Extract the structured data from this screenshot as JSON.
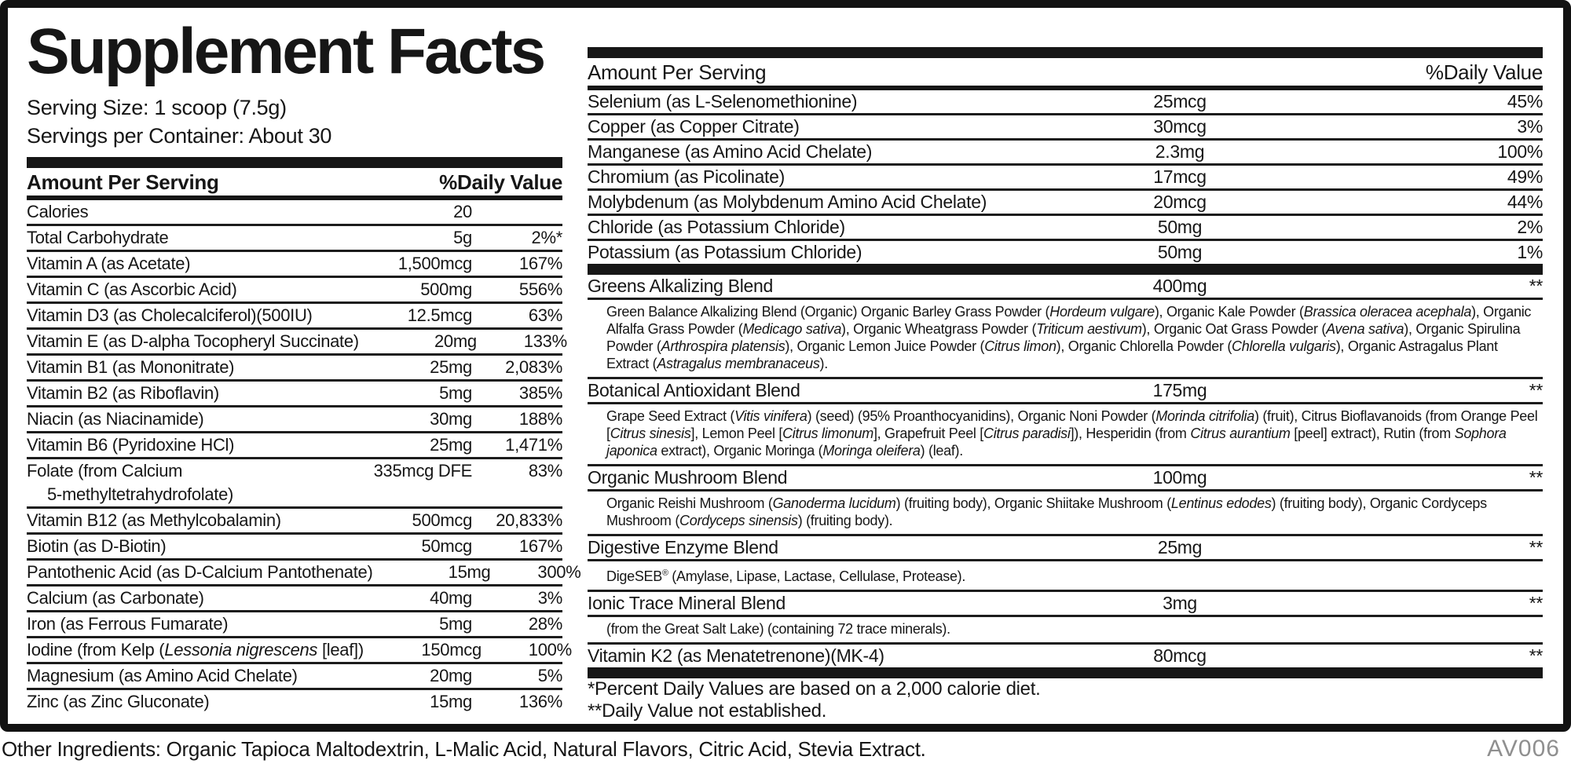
{
  "colors": {
    "ink": "#161616",
    "rule": "#1c1c1c",
    "code_muted": "#8f8f8f",
    "background": "#ffffff"
  },
  "label": {
    "title": "Supplement Facts",
    "serving_size": "Serving Size: 1 scoop (7.5g)",
    "servings_per_container": "Servings per Container: About 30",
    "header": {
      "amount": "Amount Per Serving",
      "dv": "%Daily Value"
    },
    "left_rows": [
      {
        "name": "Calories",
        "amount": "20",
        "dv": ""
      },
      {
        "name": "Total Carbohydrate",
        "amount": "5g",
        "dv": "2%*"
      },
      {
        "name": "Vitamin A (as Acetate)",
        "amount": "1,500mcg",
        "dv": "167%"
      },
      {
        "name": "Vitamin C (as Ascorbic Acid)",
        "amount": "500mg",
        "dv": "556%"
      },
      {
        "name": "Vitamin D3 (as Cholecalciferol)(500IU)",
        "amount": "12.5mcg",
        "dv": "63%"
      },
      {
        "name": "Vitamin E (as D-alpha Tocopheryl Succinate)",
        "amount": "20mg",
        "dv": "133%"
      },
      {
        "name": "Vitamin B1 (as Mononitrate)",
        "amount": "25mg",
        "dv": "2,083%"
      },
      {
        "name": "Vitamin B2 (as Riboflavin)",
        "amount": "5mg",
        "dv": "385%"
      },
      {
        "name": "Niacin (as Niacinamide)",
        "amount": "30mg",
        "dv": "188%"
      },
      {
        "name": "Vitamin B6 (Pyridoxine HCl)",
        "amount": "25mg",
        "dv": "1,471%"
      },
      {
        "name": "Folate (from Calcium",
        "name2": "5-methyltetrahydrofolate)",
        "amount": "335mcg DFE",
        "dv": "83%"
      },
      {
        "name": "Vitamin B12 (as Methylcobalamin)",
        "amount": "500mcg",
        "dv": "20,833%"
      },
      {
        "name": "Biotin (as D-Biotin)",
        "amount": "50mcg",
        "dv": "167%"
      },
      {
        "name": "Pantothenic Acid (as D-Calcium Pantothenate)",
        "amount": "15mg",
        "dv": "300%"
      },
      {
        "name": "Calcium (as Carbonate)",
        "amount": "40mg",
        "dv": "3%"
      },
      {
        "name": "Iron (as Ferrous Fumarate)",
        "amount": "5mg",
        "dv": "28%"
      },
      {
        "name": "Iodine (from Kelp (<i>Lessonia nigrescens</i> [leaf])",
        "amount": "150mcg",
        "dv": "100%"
      },
      {
        "name": "Magnesium (as Amino Acid Chelate)",
        "amount": "20mg",
        "dv": "5%"
      },
      {
        "name": "Zinc (as Zinc Gluconate)",
        "amount": "15mg",
        "dv": "136%"
      }
    ],
    "right_rows": [
      {
        "name": "Selenium (as L-Selenomethionine)",
        "amount": "25mcg",
        "dv": "45%"
      },
      {
        "name": "Copper (as Copper Citrate)",
        "amount": "30mcg",
        "dv": "3%"
      },
      {
        "name": "Manganese (as Amino Acid Chelate)",
        "amount": "2.3mg",
        "dv": "100%"
      },
      {
        "name": "Chromium (as Picolinate)",
        "amount": "17mcg",
        "dv": "49%"
      },
      {
        "name": "Molybdenum (as Molybdenum Amino Acid Chelate)",
        "amount": "20mcg",
        "dv": "44%"
      },
      {
        "name": "Chloride (as Potassium Chloride)",
        "amount": "50mg",
        "dv": "2%"
      },
      {
        "name": "Potassium (as Potassium Chloride)",
        "amount": "50mg",
        "dv": "1%"
      }
    ],
    "blends": [
      {
        "name": "Greens Alkalizing Blend",
        "amount": "400mg",
        "dv": "**",
        "desc": "Green Balance Alkalizing Blend (Organic) Organic Barley Grass Powder (<i>Hordeum vulgare</i>), Organic Kale Powder (<i>Brassica oleracea acephala</i>), Organic Alfalfa Grass Powder (<i>Medicago sativa</i>), Organic Wheatgrass Powder (<i>Triticum aestivum</i>), Organic Oat Grass Powder (<i>Avena sativa</i>), Organic Spirulina Powder (<i>Arthrospira platensis</i>), Organic Lemon Juice Powder (<i>Citrus limon</i>), Organic Chlorella Powder (<i>Chlorella vulgaris</i>), Organic Astragalus Plant Extract (<i>Astragalus membranaceus</i>)."
      },
      {
        "name": "Botanical Antioxidant Blend",
        "amount": "175mg",
        "dv": "**",
        "desc": "Grape Seed Extract (<i>Vitis vinifera</i>) (seed) (95% Proanthocyanidins), Organic Noni Powder (<i>Morinda citrifolia</i>) (fruit), Citrus Bioflavanoids (from Orange Peel [<i>Citrus sinesis</i>], Lemon Peel [<i>Citrus limonum</i>], Grapefruit Peel [<i>Citrus paradisi</i>]), Hesperidin (from <i>Citrus aurantium</i> [peel] extract), Rutin (from <i>Sophora japonica</i> extract), Organic Moringa (<i>Moringa oleifera</i>) (leaf)."
      },
      {
        "name": "Organic Mushroom Blend",
        "amount": "100mg",
        "dv": "**",
        "desc": "Organic Reishi Mushroom (<i>Ganoderma lucidum</i>) (fruiting body), Organic Shiitake Mushroom (<i>Lentinus edodes</i>) (fruiting body), Organic Cordyceps Mushroom (<i>Cordyceps sinensis</i>) (fruiting body)."
      },
      {
        "name": "Digestive Enzyme Blend",
        "amount": "25mg",
        "dv": "**",
        "desc": "DigeSEB<sup>®</sup> (Amylase, Lipase, Lactase, Cellulase, Protease)."
      },
      {
        "name": "Ionic Trace Mineral Blend",
        "amount": "3mg",
        "dv": "**",
        "desc": "(from the Great Salt Lake) (containing 72 trace minerals)."
      },
      {
        "name": "Vitamin K2 (as Menatetrenone)(MK-4)",
        "amount": "80mcg",
        "dv": "**"
      }
    ],
    "footnotes": [
      "*Percent Daily Values are based on a 2,000 calorie diet.",
      "**Daily Value not established."
    ],
    "other_ingredients": "Other Ingredients: Organic Tapioca Maltodextrin, L-Malic Acid, Natural Flavors, Citric Acid, Stevia Extract.",
    "code": "AV006"
  }
}
